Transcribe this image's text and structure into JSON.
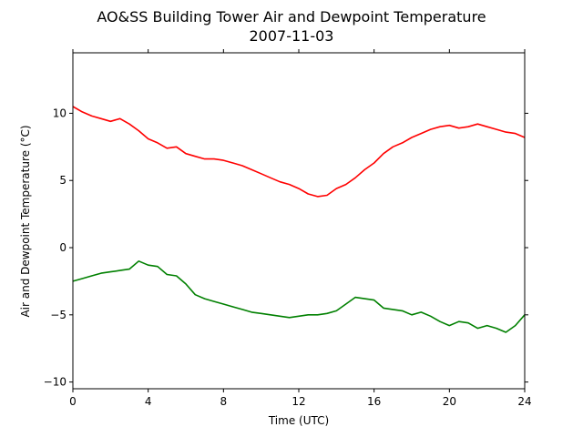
{
  "chart_data": {
    "type": "line",
    "title": "AO&SS Building Tower Air and Dewpoint Temperature",
    "subtitle": "2007-11-03",
    "xlabel": "Time (UTC)",
    "ylabel": "Air and Dewpoint Temperature (°C)",
    "xlim": [
      0,
      24
    ],
    "ylim": [
      -10.5,
      14.5
    ],
    "xticks": [
      0,
      4,
      8,
      12,
      16,
      20,
      24
    ],
    "yticks": [
      -10,
      -5,
      0,
      5,
      10
    ],
    "grid": false,
    "legend": "none",
    "series": [
      {
        "color": "#ff0000",
        "x": [
          0,
          0.5,
          1,
          1.5,
          2,
          2.5,
          3,
          3.5,
          4,
          4.5,
          5,
          5.5,
          6,
          6.5,
          7,
          7.5,
          8,
          8.5,
          9,
          9.5,
          10,
          10.5,
          11,
          11.5,
          12,
          12.5,
          13,
          13.5,
          14,
          14.5,
          15,
          15.5,
          16,
          16.5,
          17,
          17.5,
          18,
          18.5,
          19,
          19.5,
          20,
          20.5,
          21,
          21.5,
          22,
          22.5,
          23,
          23.5,
          24
        ],
        "y": [
          10.5,
          10.1,
          9.8,
          9.6,
          9.4,
          9.6,
          9.2,
          8.7,
          8.1,
          7.8,
          7.4,
          7.5,
          7.0,
          6.8,
          6.6,
          6.6,
          6.5,
          6.3,
          6.1,
          5.8,
          5.5,
          5.2,
          4.9,
          4.7,
          4.4,
          4.0,
          3.8,
          3.9,
          4.4,
          4.7,
          5.2,
          5.8,
          6.3,
          7.0,
          7.5,
          7.8,
          8.2,
          8.5,
          8.8,
          9.0,
          9.1,
          8.9,
          9.0,
          9.2,
          9.0,
          8.8,
          8.6,
          8.5,
          8.2
        ]
      },
      {
        "color": "#008000",
        "x": [
          0,
          0.5,
          1,
          1.5,
          2,
          2.5,
          3,
          3.5,
          4,
          4.5,
          5,
          5.5,
          6,
          6.5,
          7,
          7.5,
          8,
          8.5,
          9,
          9.5,
          10,
          10.5,
          11,
          11.5,
          12,
          12.5,
          13,
          13.5,
          14,
          14.5,
          15,
          15.5,
          16,
          16.5,
          17,
          17.5,
          18,
          18.5,
          19,
          19.5,
          20,
          20.5,
          21,
          21.5,
          22,
          22.5,
          23,
          23.5,
          24
        ],
        "y": [
          -2.5,
          -2.3,
          -2.1,
          -1.9,
          -1.8,
          -1.7,
          -1.6,
          -1.0,
          -1.3,
          -1.4,
          -2.0,
          -2.1,
          -2.7,
          -3.5,
          -3.8,
          -4.0,
          -4.2,
          -4.4,
          -4.6,
          -4.8,
          -4.9,
          -5.0,
          -5.1,
          -5.2,
          -5.1,
          -5.0,
          -5.0,
          -4.9,
          -4.7,
          -4.2,
          -3.7,
          -3.8,
          -3.9,
          -4.5,
          -4.6,
          -4.7,
          -5.0,
          -4.8,
          -5.1,
          -5.5,
          -5.8,
          -5.5,
          -5.6,
          -6.0,
          -5.8,
          -6.0,
          -6.3,
          -5.8,
          -5.0
        ]
      }
    ]
  }
}
